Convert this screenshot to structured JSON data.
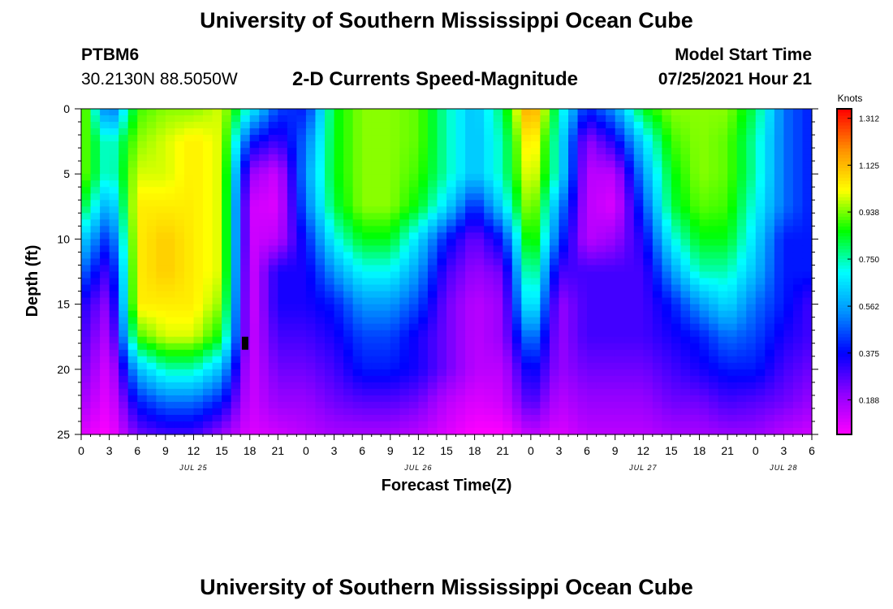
{
  "header": {
    "top_title": "University of Southern Mississippi Ocean Cube",
    "bottom_title": "University of Southern Mississippi Ocean Cube",
    "station_id": "PTBM6",
    "station_coords": "30.2130N  88.5050W",
    "model_start_label": "Model Start Time",
    "model_start_value": "07/25/2021 Hour 21"
  },
  "chart_data": {
    "type": "heatmap",
    "title": "2-D Currents Speed-Magnitude",
    "xlabel": "Forecast Time(Z)",
    "ylabel": "Depth (ft)",
    "x_unit": "hours since 2021-07-25 00Z",
    "xlim": [
      0,
      78
    ],
    "ylim": [
      0,
      25
    ],
    "y_inverted": true,
    "x_ticks": [
      {
        "hour": 0,
        "label": "0"
      },
      {
        "hour": 3,
        "label": "3"
      },
      {
        "hour": 6,
        "label": "6"
      },
      {
        "hour": 9,
        "label": "9"
      },
      {
        "hour": 12,
        "label": "12"
      },
      {
        "hour": 15,
        "label": "15"
      },
      {
        "hour": 18,
        "label": "18"
      },
      {
        "hour": 21,
        "label": "21"
      },
      {
        "hour": 24,
        "label": "0"
      },
      {
        "hour": 27,
        "label": "3"
      },
      {
        "hour": 30,
        "label": "6"
      },
      {
        "hour": 33,
        "label": "9"
      },
      {
        "hour": 36,
        "label": "12"
      },
      {
        "hour": 39,
        "label": "15"
      },
      {
        "hour": 42,
        "label": "18"
      },
      {
        "hour": 45,
        "label": "21"
      },
      {
        "hour": 48,
        "label": "0"
      },
      {
        "hour": 51,
        "label": "3"
      },
      {
        "hour": 54,
        "label": "6"
      },
      {
        "hour": 57,
        "label": "9"
      },
      {
        "hour": 60,
        "label": "12"
      },
      {
        "hour": 63,
        "label": "15"
      },
      {
        "hour": 66,
        "label": "18"
      },
      {
        "hour": 69,
        "label": "21"
      },
      {
        "hour": 72,
        "label": "0"
      },
      {
        "hour": 75,
        "label": "3"
      },
      {
        "hour": 78,
        "label": "6"
      }
    ],
    "date_labels": [
      {
        "hour": 12,
        "label": "JUL 25"
      },
      {
        "hour": 36,
        "label": "JUL 26"
      },
      {
        "hour": 60,
        "label": "JUL 27"
      },
      {
        "hour": 75,
        "label": "JUL 28"
      }
    ],
    "y_ticks": [
      0,
      5,
      10,
      15,
      20,
      25
    ],
    "colorbar": {
      "unit": "Knots",
      "min": 0.05,
      "max": 1.35,
      "ticks": [
        1.312,
        1.125,
        0.938,
        0.75,
        0.562,
        0.375,
        0.188
      ],
      "tick_labels": [
        "1.312",
        "1.125",
        "0.938",
        "0.750",
        "0.562",
        "0.375",
        "0.188"
      ],
      "colors": [
        "#ff00ff",
        "#9000ff",
        "#0000ff",
        "#0090ff",
        "#00ffff",
        "#00ff00",
        "#ffff00",
        "#ff9000",
        "#ff0000"
      ]
    },
    "grid_times": [
      0,
      3,
      6,
      9,
      12,
      15,
      18,
      21,
      24,
      27,
      30,
      33,
      36,
      39,
      42,
      45,
      48,
      51,
      54,
      57,
      60,
      63,
      66,
      69,
      72,
      75,
      78
    ],
    "grid_depths": [
      0,
      2.5,
      5,
      7.5,
      10,
      12.5,
      15,
      17.5,
      20,
      22.5,
      25
    ],
    "speed_knots": [
      [
        1.0,
        0.45,
        0.9,
        0.95,
        0.95,
        1.0,
        0.7,
        0.45,
        0.4,
        0.85,
        0.95,
        0.95,
        0.92,
        0.75,
        0.6,
        0.8,
        1.2,
        0.75,
        0.4,
        0.55,
        0.85,
        0.95,
        0.95,
        0.95,
        0.8,
        0.5,
        0.4
      ],
      [
        0.95,
        0.7,
        0.95,
        1.0,
        1.05,
        1.0,
        0.4,
        0.3,
        0.5,
        0.85,
        0.95,
        0.95,
        0.92,
        0.75,
        0.6,
        0.75,
        1.1,
        0.7,
        0.2,
        0.35,
        0.65,
        0.9,
        0.95,
        0.92,
        0.75,
        0.5,
        0.4
      ],
      [
        0.95,
        0.7,
        1.0,
        1.0,
        1.05,
        1.0,
        0.2,
        0.12,
        0.55,
        0.85,
        0.95,
        0.95,
        0.9,
        0.75,
        0.6,
        0.75,
        1.05,
        0.7,
        0.15,
        0.15,
        0.55,
        0.85,
        0.95,
        0.92,
        0.75,
        0.5,
        0.4
      ],
      [
        0.85,
        0.55,
        1.05,
        1.05,
        1.05,
        1.0,
        0.12,
        0.1,
        0.5,
        0.82,
        0.95,
        0.95,
        0.85,
        0.65,
        0.4,
        0.65,
        1.0,
        0.55,
        0.15,
        0.1,
        0.45,
        0.82,
        0.92,
        0.9,
        0.7,
        0.5,
        0.4
      ],
      [
        0.65,
        0.4,
        1.05,
        1.1,
        1.05,
        1.0,
        0.12,
        0.15,
        0.4,
        0.7,
        0.85,
        0.85,
        0.65,
        0.4,
        0.25,
        0.4,
        0.95,
        0.45,
        0.15,
        0.2,
        0.35,
        0.7,
        0.85,
        0.85,
        0.65,
        0.4,
        0.4
      ],
      [
        0.5,
        0.28,
        1.05,
        1.1,
        1.05,
        1.0,
        0.1,
        0.35,
        0.35,
        0.55,
        0.7,
        0.7,
        0.55,
        0.3,
        0.2,
        0.25,
        0.85,
        0.3,
        0.3,
        0.3,
        0.3,
        0.55,
        0.75,
        0.75,
        0.6,
        0.4,
        0.4
      ],
      [
        0.35,
        0.2,
        1.05,
        1.05,
        1.05,
        0.95,
        0.1,
        0.35,
        0.35,
        0.4,
        0.55,
        0.55,
        0.45,
        0.25,
        0.15,
        0.2,
        0.75,
        0.2,
        0.3,
        0.3,
        0.3,
        0.4,
        0.55,
        0.65,
        0.5,
        0.4,
        0.3
      ],
      [
        0.3,
        0.15,
        0.9,
        1.0,
        1.0,
        0.85,
        0.12,
        0.3,
        0.3,
        0.35,
        0.45,
        0.45,
        0.35,
        0.25,
        0.15,
        0.2,
        0.55,
        0.2,
        0.3,
        0.3,
        0.3,
        0.35,
        0.4,
        0.5,
        0.45,
        0.35,
        0.3
      ],
      [
        0.25,
        0.1,
        0.6,
        0.75,
        0.75,
        0.6,
        0.12,
        0.25,
        0.25,
        0.3,
        0.4,
        0.4,
        0.35,
        0.25,
        0.15,
        0.15,
        0.4,
        0.2,
        0.25,
        0.25,
        0.25,
        0.3,
        0.35,
        0.4,
        0.4,
        0.3,
        0.25
      ],
      [
        0.18,
        0.08,
        0.4,
        0.5,
        0.5,
        0.4,
        0.12,
        0.2,
        0.2,
        0.25,
        0.28,
        0.28,
        0.25,
        0.15,
        0.1,
        0.12,
        0.3,
        0.15,
        0.2,
        0.2,
        0.2,
        0.25,
        0.25,
        0.3,
        0.28,
        0.25,
        0.2
      ],
      [
        0.1,
        0.05,
        0.25,
        0.3,
        0.3,
        0.2,
        0.1,
        0.12,
        0.15,
        0.18,
        0.18,
        0.18,
        0.15,
        0.1,
        0.05,
        0.05,
        0.15,
        0.1,
        0.15,
        0.15,
        0.15,
        0.18,
        0.18,
        0.2,
        0.2,
        0.15,
        0.12
      ]
    ],
    "missing_cell": {
      "hour": 17.5,
      "depth": 18
    }
  }
}
